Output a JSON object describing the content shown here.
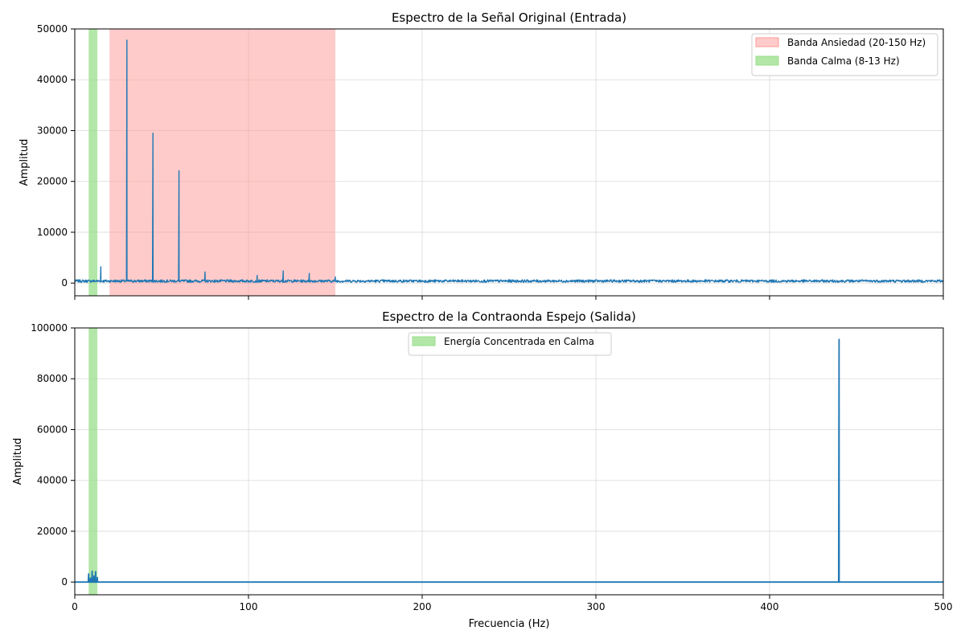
{
  "colors": {
    "signal": "#1f77b4",
    "anxiety_band": "#ff9896",
    "calm_band": "#98df8a",
    "grid": "#d9d9d9"
  },
  "chart_data": [
    {
      "type": "line",
      "title": "Espectro de la Señal Original (Entrada)",
      "xlabel": "",
      "ylabel": "Amplitud",
      "xlim": [
        0,
        500
      ],
      "ylim": [
        -2500,
        50000
      ],
      "xticks": [
        0,
        100,
        200,
        300,
        400,
        500
      ],
      "yticks": [
        0,
        10000,
        20000,
        30000,
        40000,
        50000
      ],
      "grid": true,
      "legend_position": "top-right",
      "bands": [
        {
          "name": "Banda Ansiedad (20-150 Hz)",
          "x0": 20,
          "x1": 150,
          "color": "#ff9896"
        },
        {
          "name": "Banda Calma (8-13 Hz)",
          "x0": 8,
          "x1": 13,
          "color": "#98df8a"
        }
      ],
      "baseline": 400,
      "peaks": [
        {
          "x": 15,
          "y": 3200
        },
        {
          "x": 30,
          "y": 47800
        },
        {
          "x": 45,
          "y": 29500
        },
        {
          "x": 60,
          "y": 22100
        },
        {
          "x": 75,
          "y": 2200
        },
        {
          "x": 105,
          "y": 1500
        },
        {
          "x": 120,
          "y": 2400
        },
        {
          "x": 135,
          "y": 1900
        },
        {
          "x": 150,
          "y": 1200
        }
      ]
    },
    {
      "type": "line",
      "title": "Espectro de la Contraonda Espejo (Salida)",
      "xlabel": "Frecuencia (Hz)",
      "ylabel": "Amplitud",
      "xlim": [
        0,
        500
      ],
      "ylim": [
        -5000,
        100000
      ],
      "xticks": [
        0,
        100,
        200,
        300,
        400,
        500
      ],
      "yticks": [
        0,
        20000,
        40000,
        60000,
        80000,
        100000
      ],
      "grid": true,
      "legend_position": "upper-center",
      "bands": [
        {
          "name": "Energía Concentrada en Calma",
          "x0": 8,
          "x1": 13,
          "color": "#98df8a"
        }
      ],
      "baseline": 0,
      "peaks": [
        {
          "x": 8,
          "y": 3200
        },
        {
          "x": 9,
          "y": 1500
        },
        {
          "x": 10,
          "y": 4300
        },
        {
          "x": 11,
          "y": 2400
        },
        {
          "x": 12,
          "y": 4100
        },
        {
          "x": 13,
          "y": 1800
        },
        {
          "x": 440,
          "y": 95500
        }
      ]
    }
  ]
}
